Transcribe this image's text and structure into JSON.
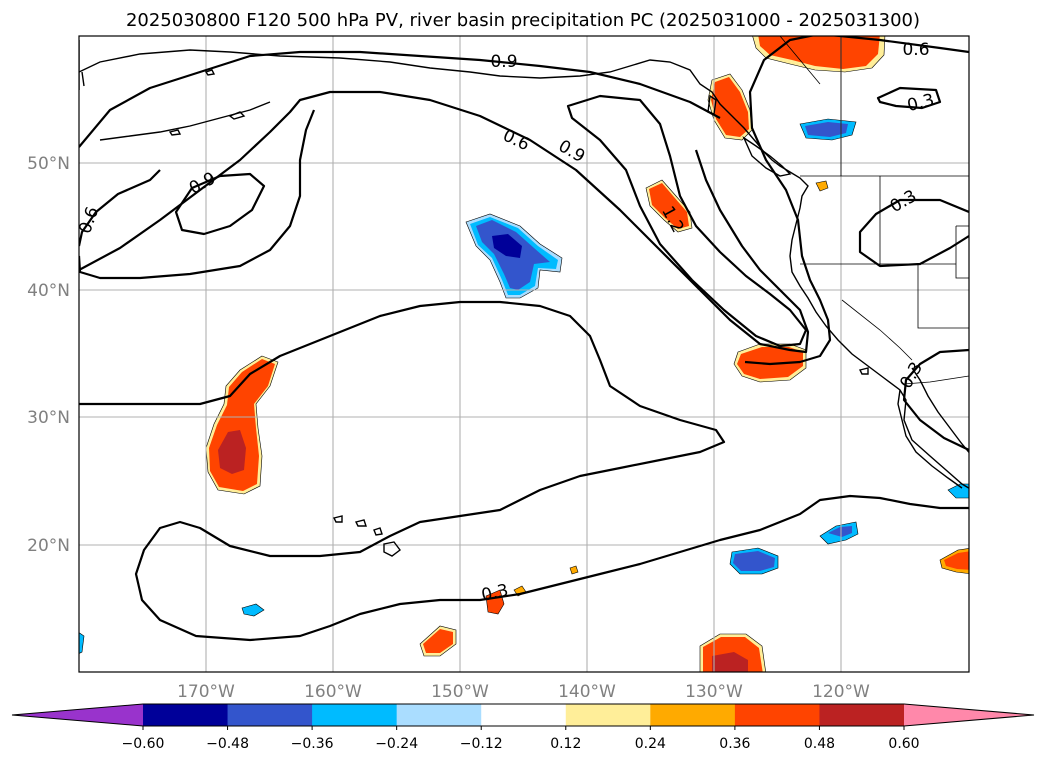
{
  "title": "2025030800 F120 500 hPa PV, river basin precipitation PC (2025031000 - 2025031300)",
  "lon_labels": [
    "170°W",
    "160°W",
    "150°W",
    "140°W",
    "130°W",
    "120°W"
  ],
  "lat_labels": [
    "50°N",
    "40°N",
    "30°N",
    "20°N"
  ],
  "contour_labels": [
    {
      "name": "contour-label-0.9-north",
      "text": "0.9"
    },
    {
      "name": "contour-label-0.6-northeast",
      "text": "0.6"
    },
    {
      "name": "contour-label-0.3-northeast",
      "text": "0.3"
    },
    {
      "name": "contour-label-0.6-mid",
      "text": "0.6"
    },
    {
      "name": "contour-label-0.9-mid",
      "text": "0.9"
    },
    {
      "name": "contour-label-0.9-west",
      "text": "0.9"
    },
    {
      "name": "contour-label-0.6-west",
      "text": "0.6"
    },
    {
      "name": "contour-label-1.2",
      "text": "1.2"
    },
    {
      "name": "contour-label-0.3-east",
      "text": "0.3"
    },
    {
      "name": "contour-label-0.3-coast",
      "text": "0.3"
    },
    {
      "name": "contour-label-0.3-south",
      "text": "0.3"
    }
  ],
  "colorbar": {
    "colors": [
      "#9933cc",
      "#000099",
      "#3355cc",
      "#00bbff",
      "#aaddff",
      "#ffffff",
      "#ffee99",
      "#ffaa00",
      "#ff4400",
      "#bb2222",
      "#ff88aa"
    ],
    "tick_labels": [
      "−0.60",
      "−0.48",
      "−0.36",
      "−0.24",
      "−0.12",
      "0.12",
      "0.24",
      "0.36",
      "0.48",
      "0.60"
    ]
  },
  "colors": {
    "grid": "#b0b0b0",
    "tick_text": "#808080"
  }
}
